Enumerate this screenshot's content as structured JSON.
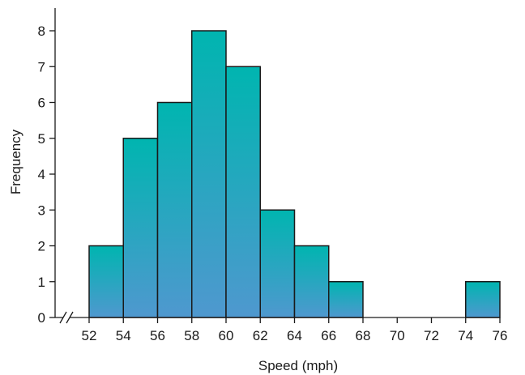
{
  "chart_data": {
    "type": "bar",
    "title": "",
    "xlabel": "Speed (mph)",
    "ylabel": "Frequency",
    "bin_edges": [
      52,
      54,
      56,
      58,
      60,
      62,
      64,
      66,
      68,
      70,
      72,
      74,
      76
    ],
    "values": [
      2,
      5,
      6,
      8,
      7,
      3,
      2,
      1,
      0,
      0,
      0,
      1
    ],
    "x_ticks": [
      "52",
      "54",
      "56",
      "58",
      "60",
      "62",
      "64",
      "66",
      "68",
      "70",
      "72",
      "74",
      "76"
    ],
    "y_ticks": [
      "0",
      "1",
      "2",
      "3",
      "4",
      "5",
      "6",
      "7",
      "8"
    ],
    "xlim": [
      52,
      76
    ],
    "ylim": [
      0,
      8
    ],
    "grid": false,
    "axis_break": true,
    "colors": {
      "bar_top": "#00b5b0",
      "bar_bottom": "#4f98cf",
      "outline": "#1a1a1a"
    }
  }
}
